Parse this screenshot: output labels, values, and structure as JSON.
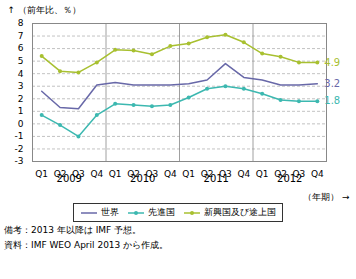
{
  "chart_data": {
    "type": "line",
    "ylabel": "（前年比、％）",
    "xlabel": "（年期）",
    "categories": [
      "Q1",
      "Q2",
      "Q3",
      "Q4",
      "Q1",
      "Q2",
      "Q3",
      "Q4",
      "Q1",
      "Q2",
      "Q3",
      "Q4",
      "Q1",
      "Q2",
      "Q3",
      "Q4"
    ],
    "category_groups": [
      "2009",
      "2010",
      "2011",
      "2012"
    ],
    "series": [
      {
        "name": "世界",
        "color": "#6868a8",
        "marker": "none",
        "end_label": "3.2",
        "values": [
          2.6,
          1.3,
          1.2,
          3.1,
          3.3,
          3.1,
          3.1,
          3.1,
          3.2,
          3.5,
          4.8,
          3.7,
          3.5,
          3.1,
          3.1,
          3.2
        ]
      },
      {
        "name": "先進国",
        "color": "#3cb8b0",
        "marker": "circle",
        "end_label": "1.8",
        "values": [
          0.7,
          -0.1,
          -1.0,
          0.7,
          1.6,
          1.5,
          1.4,
          1.5,
          2.1,
          2.8,
          3.0,
          2.8,
          2.4,
          1.9,
          1.8,
          1.8
        ]
      },
      {
        "name": "新興国及び途上国",
        "color": "#a8c030",
        "marker": "circle",
        "end_label": "4.9",
        "values": [
          5.4,
          4.2,
          4.1,
          4.9,
          5.9,
          5.85,
          5.55,
          6.2,
          6.4,
          6.9,
          7.1,
          6.5,
          5.6,
          5.35,
          4.9,
          4.9
        ]
      }
    ],
    "ylim": [
      -3,
      8
    ],
    "yticks": [
      -3,
      -2,
      -1,
      0,
      1,
      2,
      3,
      4,
      5,
      6,
      7,
      8
    ],
    "grid": true,
    "legend": "bottom",
    "notes": [
      "備考：2013 年以降は IMF 予想。",
      "資料：IMF WEO April 2013 から作成。"
    ]
  }
}
